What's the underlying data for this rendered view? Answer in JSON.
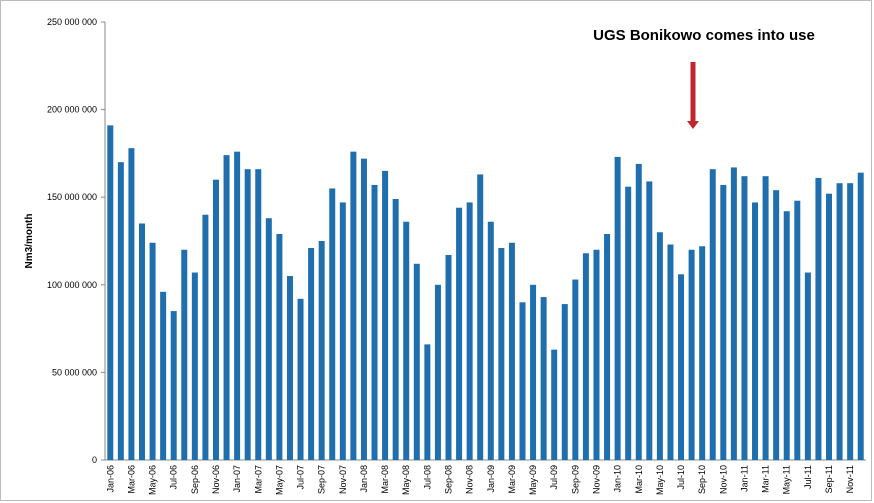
{
  "chart_data": {
    "type": "bar",
    "annotation": "UGS Bonikowo comes into use",
    "y_label": "Nm3/month",
    "color": "#1f6fae",
    "categories": [
      "Jan-06",
      null,
      "Mar-06",
      null,
      "May-06",
      null,
      "Jul-06",
      null,
      "Sep-06",
      null,
      "Nov-06",
      null,
      "Jan-07",
      null,
      "Mar-07",
      null,
      "May-07",
      null,
      "Jul-07",
      null,
      "Sep-07",
      null,
      "Nov-07",
      null,
      "Jan-08",
      null,
      "Mar-08",
      null,
      "May-08",
      null,
      "Jul-08",
      null,
      "Sep-08",
      null,
      "Nov-08",
      null,
      "Jan-09",
      null,
      "Mar-09",
      null,
      "May-09",
      null,
      "Jul-09",
      null,
      "Sep-09",
      null,
      "Nov-09",
      null,
      "Jan-10",
      null,
      "Mar-10",
      null,
      "May-10",
      null,
      "Jul-10",
      null,
      "Sep-10",
      null,
      "Nov-10",
      null,
      "Jan-11",
      null,
      "Mar-11",
      null,
      "May-11",
      null,
      "Jul-11",
      null,
      "Sep-11",
      null,
      "Nov-11",
      null
    ],
    "values": [
      191000000,
      170000000,
      178000000,
      135000000,
      124000000,
      96000000,
      85000000,
      120000000,
      107000000,
      140000000,
      160000000,
      174000000,
      176000000,
      166000000,
      166000000,
      138000000,
      129000000,
      105000000,
      92000000,
      121000000,
      125000000,
      155000000,
      147000000,
      176000000,
      172000000,
      157000000,
      165000000,
      149000000,
      136000000,
      112000000,
      66000000,
      100000000,
      117000000,
      144000000,
      147000000,
      163000000,
      136000000,
      121000000,
      124000000,
      90000000,
      100000000,
      93000000,
      63000000,
      89000000,
      103000000,
      118000000,
      120000000,
      129000000,
      173000000,
      156000000,
      169000000,
      159000000,
      130000000,
      123000000,
      106000000,
      120000000,
      122000000,
      166000000,
      157000000,
      167000000,
      162000000,
      147000000,
      162000000,
      154000000,
      142000000,
      148000000,
      107000000,
      161000000,
      152000000,
      158000000,
      158000000,
      164000000
    ],
    "ylim": [
      0,
      250000000
    ],
    "yticks": [
      0,
      {
        "value": 50000000,
        "label": "50 000 000"
      },
      {
        "value": 100000000,
        "label": "100 000 000"
      },
      {
        "value": 150000000,
        "label": "150 000 000"
      },
      {
        "value": 200000000,
        "label": "200 000 000"
      },
      {
        "value": 250000000,
        "label": "250 000 000"
      }
    ],
    "grid": false
  }
}
